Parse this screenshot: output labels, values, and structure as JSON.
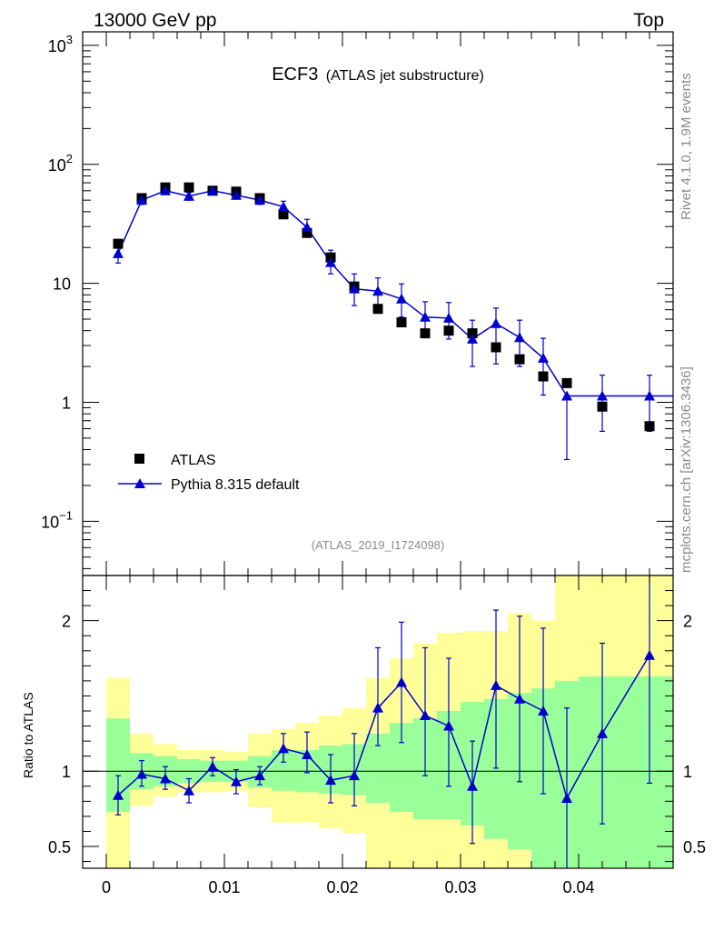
{
  "header": {
    "left": "13000 GeV pp",
    "right": "Top"
  },
  "side_text": {
    "rivet": "Rivet 4.1.0,  1.9M events",
    "mcplots": "mcplots.cern.ch [arXiv:1306.3436]"
  },
  "chart_data": {
    "type": "scatter",
    "title": "ECF3",
    "subtitle": "(ATLAS jet substructure)",
    "analysis_id": "(ATLAS_2019_I1724098)",
    "xlim": [
      -0.002,
      0.048
    ],
    "ylim_main": [
      0.035,
      1300
    ],
    "yscale_main": "log",
    "x_ticks": [
      0,
      0.01,
      0.02,
      0.03,
      0.04
    ],
    "x_tick_labels": [
      "0",
      "0.01",
      "0.02",
      "0.03",
      "0.04"
    ],
    "y_ticks_main": [
      {
        "v": 0.1,
        "base": "10",
        "exp": "−1"
      },
      {
        "v": 1,
        "base": "1",
        "exp": ""
      },
      {
        "v": 10,
        "base": "10",
        "exp": ""
      },
      {
        "v": 100,
        "base": "10",
        "exp": "2"
      },
      {
        "v": 1000,
        "base": "10",
        "exp": "3"
      }
    ],
    "legend": [
      {
        "name": "ATLAS",
        "marker": "square",
        "color": "#000000"
      },
      {
        "name": "Pythia 8.315 default",
        "marker": "triangle",
        "color": "#0000cc"
      }
    ],
    "bin_edges": [
      0,
      0.002,
      0.004,
      0.006,
      0.008,
      0.01,
      0.012,
      0.014,
      0.016,
      0.018,
      0.02,
      0.022,
      0.024,
      0.026,
      0.028,
      0.03,
      0.032,
      0.034,
      0.036,
      0.038,
      0.04,
      0.044,
      0.048
    ],
    "x": [
      0.001,
      0.003,
      0.005,
      0.007,
      0.009,
      0.011,
      0.013,
      0.015,
      0.017,
      0.019,
      0.021,
      0.023,
      0.025,
      0.027,
      0.029,
      0.031,
      0.033,
      0.035,
      0.037,
      0.039,
      0.042,
      0.046
    ],
    "series": [
      {
        "name": "ATLAS",
        "values": [
          21.5,
          52,
          64,
          64,
          60,
          59,
          52,
          38,
          26.5,
          16.5,
          9.4,
          6.1,
          4.7,
          3.8,
          4.0,
          3.8,
          2.9,
          2.3,
          1.65,
          1.45,
          0.92,
          0.63
        ]
      },
      {
        "name": "Pythia 8.315 default",
        "values": [
          17.8,
          50,
          60,
          54,
          60,
          55,
          50,
          44,
          29.5,
          15.0,
          9.0,
          8.6,
          7.4,
          5.2,
          5.1,
          3.4,
          4.6,
          3.5,
          2.35,
          1.13,
          1.13,
          1.13
        ],
        "err_low": [
          3.0,
          4.0,
          4.0,
          4.0,
          4.0,
          4.0,
          4.0,
          4.0,
          4.0,
          3.0,
          2.5,
          2.5,
          2.2,
          1.6,
          1.7,
          1.4,
          2.5,
          1.5,
          1.2,
          0.8,
          0.56,
          0.56
        ],
        "err_high": [
          3.0,
          4.0,
          4.0,
          4.0,
          5.0,
          4.0,
          4.0,
          5.0,
          5.0,
          4.0,
          3.0,
          2.5,
          2.5,
          1.8,
          1.8,
          1.5,
          1.6,
          1.4,
          1.1,
          0.0,
          0.56,
          0.56
        ]
      }
    ],
    "ratio": {
      "ylabel": "Ratio to ATLAS",
      "ylim": [
        0.355,
        2.3
      ],
      "y_ticks": [
        0.5,
        1,
        2
      ],
      "y_tick_labels": [
        "0.5",
        "1",
        "2"
      ],
      "pythia_ratio": [
        0.84,
        0.98,
        0.95,
        0.87,
        1.03,
        0.93,
        0.97,
        1.15,
        1.11,
        0.94,
        0.97,
        1.42,
        1.59,
        1.37,
        1.3,
        0.9,
        1.57,
        1.48,
        1.4,
        0.82,
        1.25,
        1.77
      ],
      "ratio_err_low": [
        0.13,
        0.08,
        0.07,
        0.08,
        0.06,
        0.08,
        0.06,
        0.09,
        0.12,
        0.15,
        0.2,
        0.25,
        0.4,
        0.4,
        0.4,
        0.38,
        0.55,
        0.55,
        0.55,
        0.5,
        0.6,
        0.85
      ],
      "ratio_err_high": [
        0.13,
        0.09,
        0.08,
        0.08,
        0.06,
        0.08,
        0.06,
        0.1,
        0.15,
        0.17,
        0.28,
        0.4,
        0.4,
        0.45,
        0.45,
        0.3,
        0.5,
        0.55,
        0.55,
        0.6,
        0.6,
        0.6
      ],
      "band_green": [
        [
          0.73,
          1.35
        ],
        [
          0.88,
          1.12
        ],
        [
          0.9,
          1.1
        ],
        [
          0.92,
          1.08
        ],
        [
          0.93,
          1.07
        ],
        [
          0.93,
          1.07
        ],
        [
          0.89,
          1.1
        ],
        [
          0.87,
          1.14
        ],
        [
          0.86,
          1.14
        ],
        [
          0.85,
          1.17
        ],
        [
          0.84,
          1.18
        ],
        [
          0.79,
          1.25
        ],
        [
          0.73,
          1.32
        ],
        [
          0.68,
          1.35
        ],
        [
          0.68,
          1.4
        ],
        [
          0.64,
          1.46
        ],
        [
          0.55,
          1.48
        ],
        [
          0.48,
          1.52
        ],
        [
          0.35,
          1.55
        ],
        [
          0.3,
          1.6
        ],
        [
          0.3,
          1.63
        ],
        [
          0.3,
          1.63
        ]
      ],
      "band_yellow": [
        [
          0.33,
          1.62
        ],
        [
          0.77,
          1.25
        ],
        [
          0.83,
          1.18
        ],
        [
          0.86,
          1.14
        ],
        [
          0.86,
          1.14
        ],
        [
          0.87,
          1.13
        ],
        [
          0.76,
          1.25
        ],
        [
          0.66,
          1.28
        ],
        [
          0.66,
          1.32
        ],
        [
          0.62,
          1.37
        ],
        [
          0.59,
          1.42
        ],
        [
          0.3,
          1.62
        ],
        [
          0.3,
          1.75
        ],
        [
          0.3,
          1.85
        ],
        [
          0.3,
          1.92
        ],
        [
          0.3,
          1.93
        ],
        [
          0.3,
          1.93
        ],
        [
          0.3,
          2.05
        ],
        [
          0.3,
          2.0
        ],
        [
          0.3,
          2.3
        ],
        [
          0.3,
          2.3
        ],
        [
          0.3,
          2.3
        ]
      ]
    }
  }
}
